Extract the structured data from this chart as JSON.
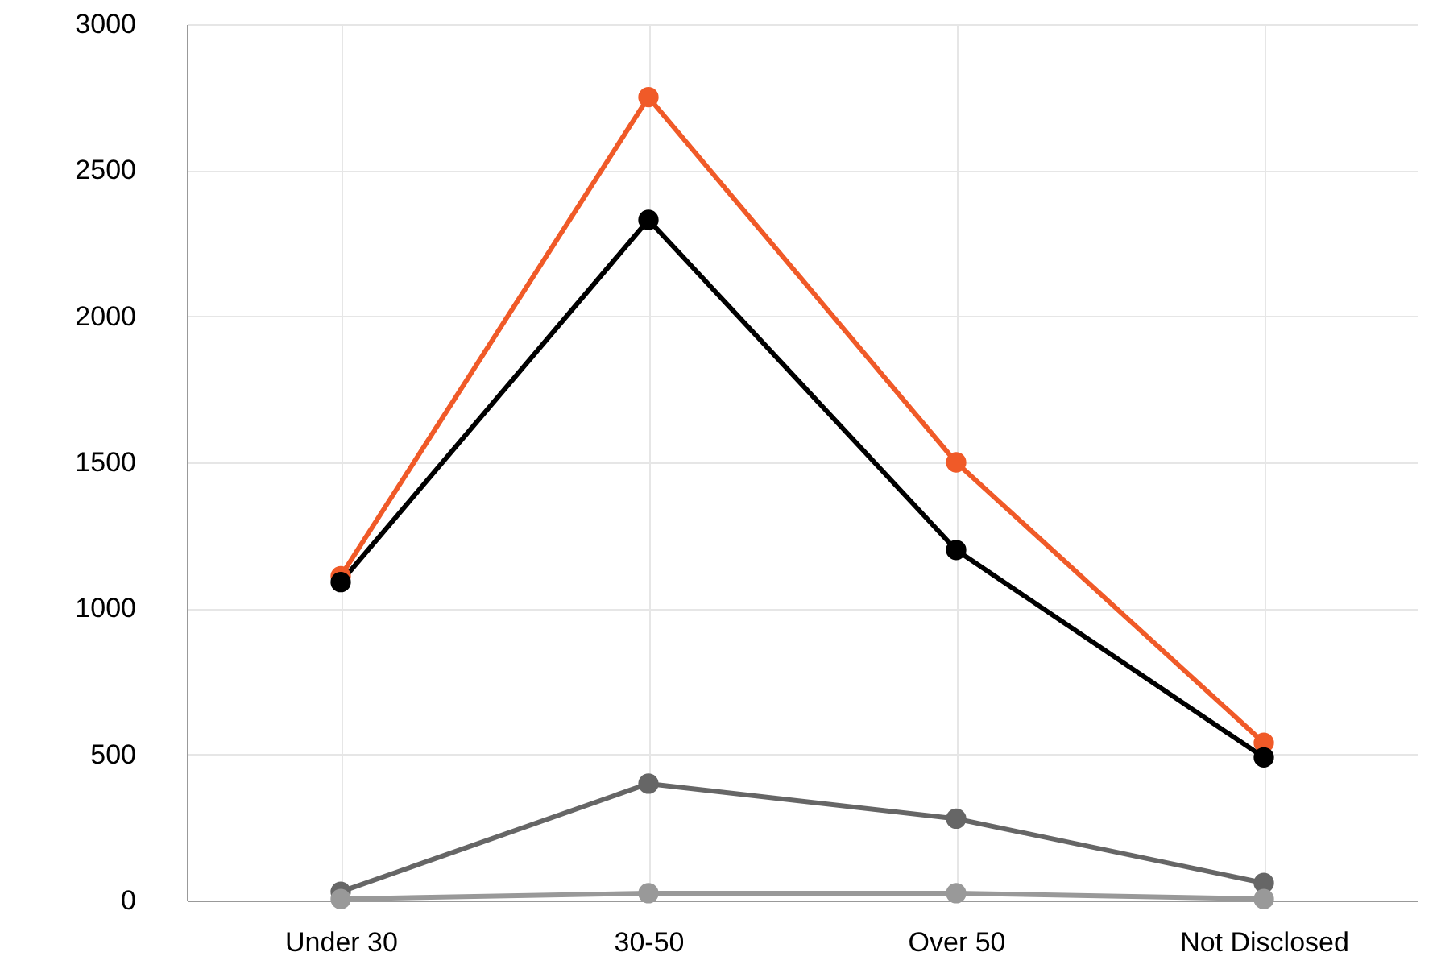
{
  "chart_data": {
    "type": "line",
    "categories": [
      "Under 30",
      "30-50",
      "Over 50",
      "Not Disclosed"
    ],
    "series": [
      {
        "color": "#f05a28",
        "values": [
          1110,
          2750,
          1500,
          540
        ]
      },
      {
        "color": "#000000",
        "values": [
          1090,
          2330,
          1200,
          490
        ]
      },
      {
        "color": "#666666",
        "values": [
          30,
          400,
          280,
          60
        ]
      },
      {
        "color": "#999999",
        "values": [
          5,
          25,
          25,
          5
        ]
      }
    ],
    "ylim": [
      0,
      3000
    ],
    "yticks": [
      0,
      500,
      1000,
      1500,
      2000,
      2500,
      3000
    ],
    "grid": true,
    "marker": "circle",
    "line_style": "solid"
  }
}
